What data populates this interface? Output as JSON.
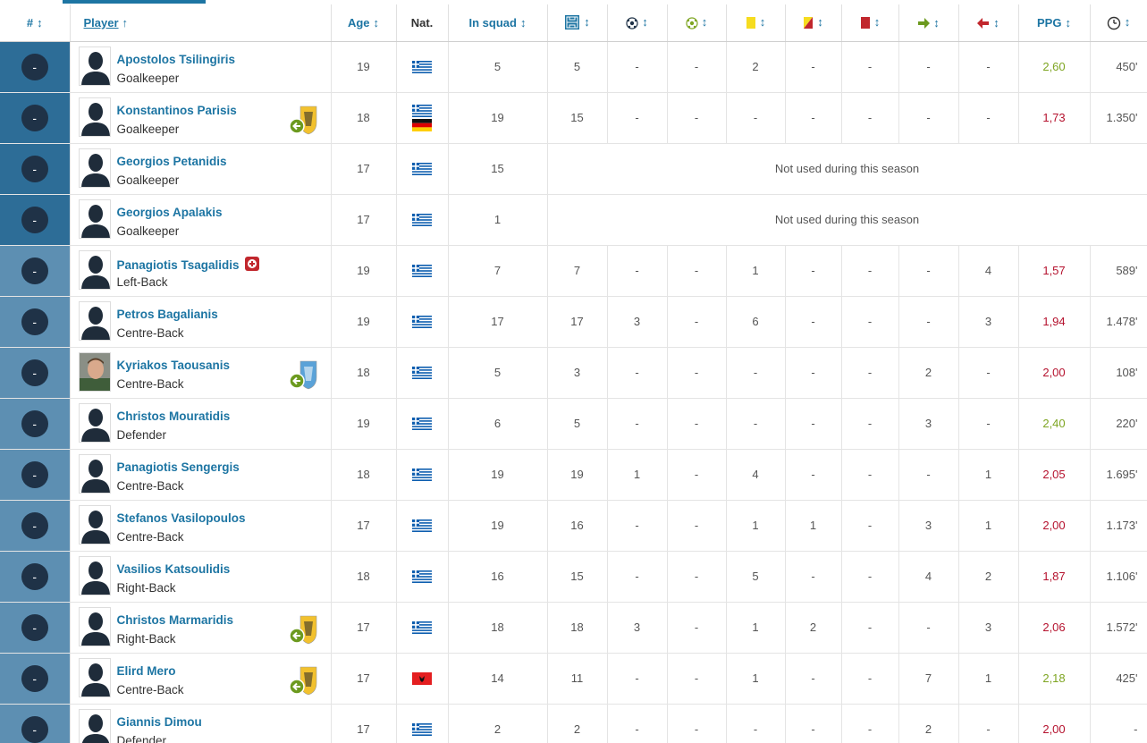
{
  "headers": {
    "num": "#",
    "player": "Player",
    "age": "Age",
    "nat": "Nat.",
    "squad": "In squad",
    "ppg": "PPG",
    "sort_icon": "↕",
    "sort_up_icon": "↑"
  },
  "header_icons": [
    "appearances-icon",
    "goals-icon",
    "assists-icon",
    "yellow-card-icon",
    "second-yellow-icon",
    "red-card-icon",
    "sub-on-icon",
    "sub-off-icon",
    "minutes-clock-icon"
  ],
  "colors": {
    "accent": "#1d75a3",
    "gk_row": "#2d6d97",
    "def_row": "#5d8fb2",
    "ppg_good": "#7ea522",
    "ppg_bad": "#b5122e"
  },
  "not_used_text": "Not used during this season",
  "rows": [
    {
      "num": "-",
      "name": "Apostolos Tsilingiris",
      "pos": "Goalkeeper",
      "group": "gk",
      "photo": "silhouette",
      "age": "19",
      "flags": [
        "greece"
      ],
      "squad": "5",
      "apps": "5",
      "goals": "-",
      "assists": "-",
      "yellow": "2",
      "yr": "-",
      "red": "-",
      "subon": "-",
      "suboff": "-",
      "ppg": "2,60",
      "ppg_color": "good",
      "mins": "450'",
      "club": ""
    },
    {
      "num": "-",
      "name": "Konstantinos Parisis",
      "pos": "Goalkeeper",
      "group": "gk",
      "photo": "silhouette",
      "age": "18",
      "flags": [
        "greece",
        "germany"
      ],
      "squad": "19",
      "apps": "15",
      "goals": "-",
      "assists": "-",
      "yellow": "-",
      "yr": "-",
      "red": "-",
      "subon": "-",
      "suboff": "-",
      "ppg": "1,73",
      "ppg_color": "bad",
      "mins": "1.350'",
      "club": "yellow-crest-loan"
    },
    {
      "num": "-",
      "name": "Georgios Petanidis",
      "pos": "Goalkeeper",
      "group": "gk",
      "photo": "silhouette",
      "age": "17",
      "flags": [
        "greece"
      ],
      "squad": "15",
      "not_used": true,
      "club": ""
    },
    {
      "num": "-",
      "name": "Georgios Apalakis",
      "pos": "Goalkeeper",
      "group": "gk",
      "photo": "silhouette",
      "age": "17",
      "flags": [
        "greece"
      ],
      "squad": "1",
      "not_used": true,
      "club": ""
    },
    {
      "num": "-",
      "name": "Panagiotis Tsagalidis",
      "pos": "Left-Back",
      "group": "def",
      "photo": "silhouette",
      "injury": true,
      "age": "19",
      "flags": [
        "greece"
      ],
      "squad": "7",
      "apps": "7",
      "goals": "-",
      "assists": "-",
      "yellow": "1",
      "yr": "-",
      "red": "-",
      "subon": "-",
      "suboff": "4",
      "ppg": "1,57",
      "ppg_color": "bad",
      "mins": "589'",
      "club": ""
    },
    {
      "num": "-",
      "name": "Petros Bagalianis",
      "pos": "Centre-Back",
      "group": "def",
      "photo": "silhouette",
      "age": "19",
      "flags": [
        "greece"
      ],
      "squad": "17",
      "apps": "17",
      "goals": "3",
      "assists": "-",
      "yellow": "6",
      "yr": "-",
      "red": "-",
      "subon": "-",
      "suboff": "3",
      "ppg": "1,94",
      "ppg_color": "bad",
      "mins": "1.478'",
      "club": ""
    },
    {
      "num": "-",
      "name": "Kyriakos Taousanis",
      "pos": "Centre-Back",
      "group": "def",
      "photo": "face",
      "age": "18",
      "flags": [
        "greece"
      ],
      "squad": "5",
      "apps": "3",
      "goals": "-",
      "assists": "-",
      "yellow": "-",
      "yr": "-",
      "red": "-",
      "subon": "2",
      "suboff": "-",
      "ppg": "2,00",
      "ppg_color": "bad",
      "mins": "108'",
      "club": "blue-crest-loan"
    },
    {
      "num": "-",
      "name": "Christos Mouratidis",
      "pos": "Defender",
      "group": "def",
      "photo": "silhouette",
      "age": "19",
      "flags": [
        "greece"
      ],
      "squad": "6",
      "apps": "5",
      "goals": "-",
      "assists": "-",
      "yellow": "-",
      "yr": "-",
      "red": "-",
      "subon": "3",
      "suboff": "-",
      "ppg": "2,40",
      "ppg_color": "good",
      "mins": "220'",
      "club": ""
    },
    {
      "num": "-",
      "name": "Panagiotis Sengergis",
      "pos": "Centre-Back",
      "group": "def",
      "photo": "silhouette",
      "age": "18",
      "flags": [
        "greece"
      ],
      "squad": "19",
      "apps": "19",
      "goals": "1",
      "assists": "-",
      "yellow": "4",
      "yr": "-",
      "red": "-",
      "subon": "-",
      "suboff": "1",
      "ppg": "2,05",
      "ppg_color": "bad",
      "mins": "1.695'",
      "club": ""
    },
    {
      "num": "-",
      "name": "Stefanos Vasilopoulos",
      "pos": "Centre-Back",
      "group": "def",
      "photo": "silhouette",
      "age": "17",
      "flags": [
        "greece"
      ],
      "squad": "19",
      "apps": "16",
      "goals": "-",
      "assists": "-",
      "yellow": "1",
      "yr": "1",
      "red": "-",
      "subon": "3",
      "suboff": "1",
      "ppg": "2,00",
      "ppg_color": "bad",
      "mins": "1.173'",
      "club": ""
    },
    {
      "num": "-",
      "name": "Vasilios Katsoulidis",
      "pos": "Right-Back",
      "group": "def",
      "photo": "silhouette",
      "age": "18",
      "flags": [
        "greece"
      ],
      "squad": "16",
      "apps": "15",
      "goals": "-",
      "assists": "-",
      "yellow": "5",
      "yr": "-",
      "red": "-",
      "subon": "4",
      "suboff": "2",
      "ppg": "1,87",
      "ppg_color": "bad",
      "mins": "1.106'",
      "club": ""
    },
    {
      "num": "-",
      "name": "Christos Marmaridis",
      "pos": "Right-Back",
      "group": "def",
      "photo": "silhouette",
      "age": "17",
      "flags": [
        "greece"
      ],
      "squad": "18",
      "apps": "18",
      "goals": "3",
      "assists": "-",
      "yellow": "1",
      "yr": "2",
      "red": "-",
      "subon": "-",
      "suboff": "3",
      "ppg": "2,06",
      "ppg_color": "bad",
      "mins": "1.572'",
      "club": "yellow-crest-loan"
    },
    {
      "num": "-",
      "name": "Elird Mero",
      "pos": "Centre-Back",
      "group": "def",
      "photo": "silhouette",
      "age": "17",
      "flags": [
        "albania"
      ],
      "squad": "14",
      "apps": "11",
      "goals": "-",
      "assists": "-",
      "yellow": "1",
      "yr": "-",
      "red": "-",
      "subon": "7",
      "suboff": "1",
      "ppg": "2,18",
      "ppg_color": "good",
      "mins": "425'",
      "club": "yellow-crest-loan"
    },
    {
      "num": "-",
      "name": "Giannis Dimou",
      "pos": "Defender",
      "group": "def",
      "photo": "silhouette",
      "age": "17",
      "flags": [
        "greece"
      ],
      "squad": "2",
      "apps": "2",
      "goals": "-",
      "assists": "-",
      "yellow": "-",
      "yr": "-",
      "red": "-",
      "subon": "2",
      "suboff": "-",
      "ppg": "2,00",
      "ppg_color": "bad",
      "mins": "-",
      "club": ""
    }
  ]
}
